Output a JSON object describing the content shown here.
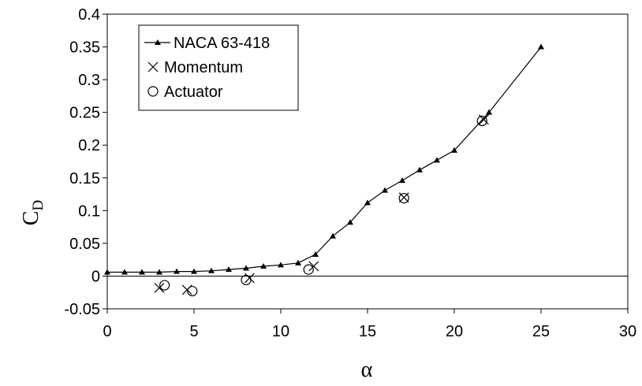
{
  "chart_data": {
    "type": "scatter",
    "xlabel": "α",
    "ylabel": "C",
    "ylabel_subscript": "D",
    "xlim": [
      0,
      30
    ],
    "ylim": [
      -0.05,
      0.4
    ],
    "xticks": [
      "0",
      "5",
      "10",
      "15",
      "20",
      "25",
      "30"
    ],
    "yticks": [
      "-0.05",
      "0",
      "0.05",
      "0.1",
      "0.15",
      "0.2",
      "0.25",
      "0.3",
      "0.35",
      "0.4"
    ],
    "grid": false,
    "legend_position": "top-left",
    "series": [
      {
        "name": "NACA 63-418",
        "marker": "triangle",
        "line": true,
        "x": [
          0,
          1,
          2,
          3,
          4,
          5,
          6,
          7,
          8,
          9,
          10,
          11,
          12,
          13,
          14,
          15,
          16,
          17,
          18,
          19,
          20,
          22,
          25
        ],
        "y": [
          0.006,
          0.006,
          0.006,
          0.006,
          0.007,
          0.007,
          0.008,
          0.01,
          0.012,
          0.015,
          0.017,
          0.02,
          0.033,
          0.061,
          0.082,
          0.112,
          0.131,
          0.146,
          0.162,
          0.177,
          0.192,
          0.25,
          0.35
        ]
      },
      {
        "name": "Momentum",
        "marker": "x",
        "line": false,
        "x": [
          3.0,
          4.6,
          8.2,
          11.9,
          17.1,
          21.7
        ],
        "y": [
          -0.018,
          -0.021,
          -0.003,
          0.015,
          0.12,
          0.239
        ]
      },
      {
        "name": "Actuator",
        "marker": "circle",
        "line": false,
        "x": [
          3.3,
          4.9,
          8.0,
          11.6,
          17.1,
          21.6
        ],
        "y": [
          -0.014,
          -0.023,
          -0.006,
          0.01,
          0.119,
          0.237
        ]
      }
    ]
  }
}
